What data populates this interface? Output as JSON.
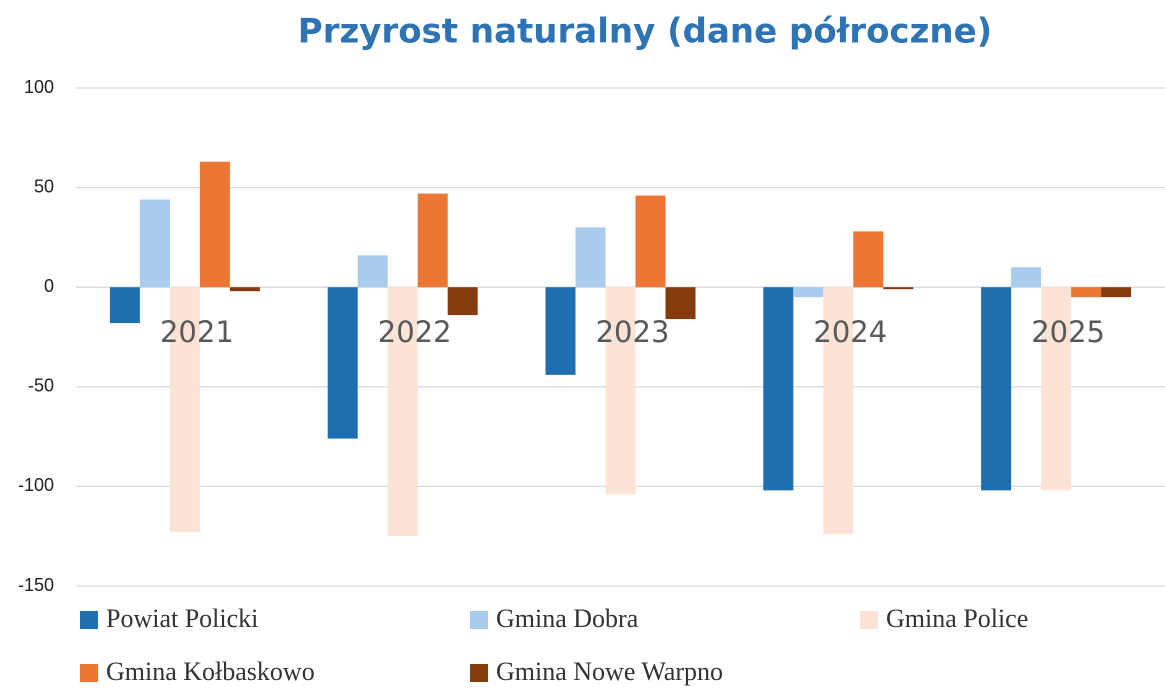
{
  "chart_data": {
    "type": "bar",
    "title": "Przyrost naturalny (dane półroczne)",
    "categories": [
      "2021",
      "2022",
      "2023",
      "2024",
      "2025"
    ],
    "series": [
      {
        "name": "Powiat Policki",
        "color": "#1f6eb0",
        "values": [
          -18,
          -76,
          -44,
          -102,
          -102
        ]
      },
      {
        "name": "Gmina Dobra",
        "color": "#a8cbee",
        "values": [
          44,
          16,
          30,
          -5,
          10
        ]
      },
      {
        "name": "Gmina Police",
        "color": "#fbe3d6",
        "values": [
          -123,
          -125,
          -104,
          -124,
          -102
        ]
      },
      {
        "name": "Gmina Kołbaskowo",
        "color": "#ec7634",
        "values": [
          63,
          47,
          46,
          28,
          -5
        ]
      },
      {
        "name": "Gmina Nowe Warpno",
        "color": "#843c0c",
        "values": [
          -2,
          -14,
          -16,
          -1,
          -5
        ]
      }
    ],
    "ylim": [
      -150,
      100
    ],
    "yticks": [
      -150,
      -100,
      -50,
      0,
      50,
      100
    ],
    "grid": true,
    "legend": "bottom"
  }
}
